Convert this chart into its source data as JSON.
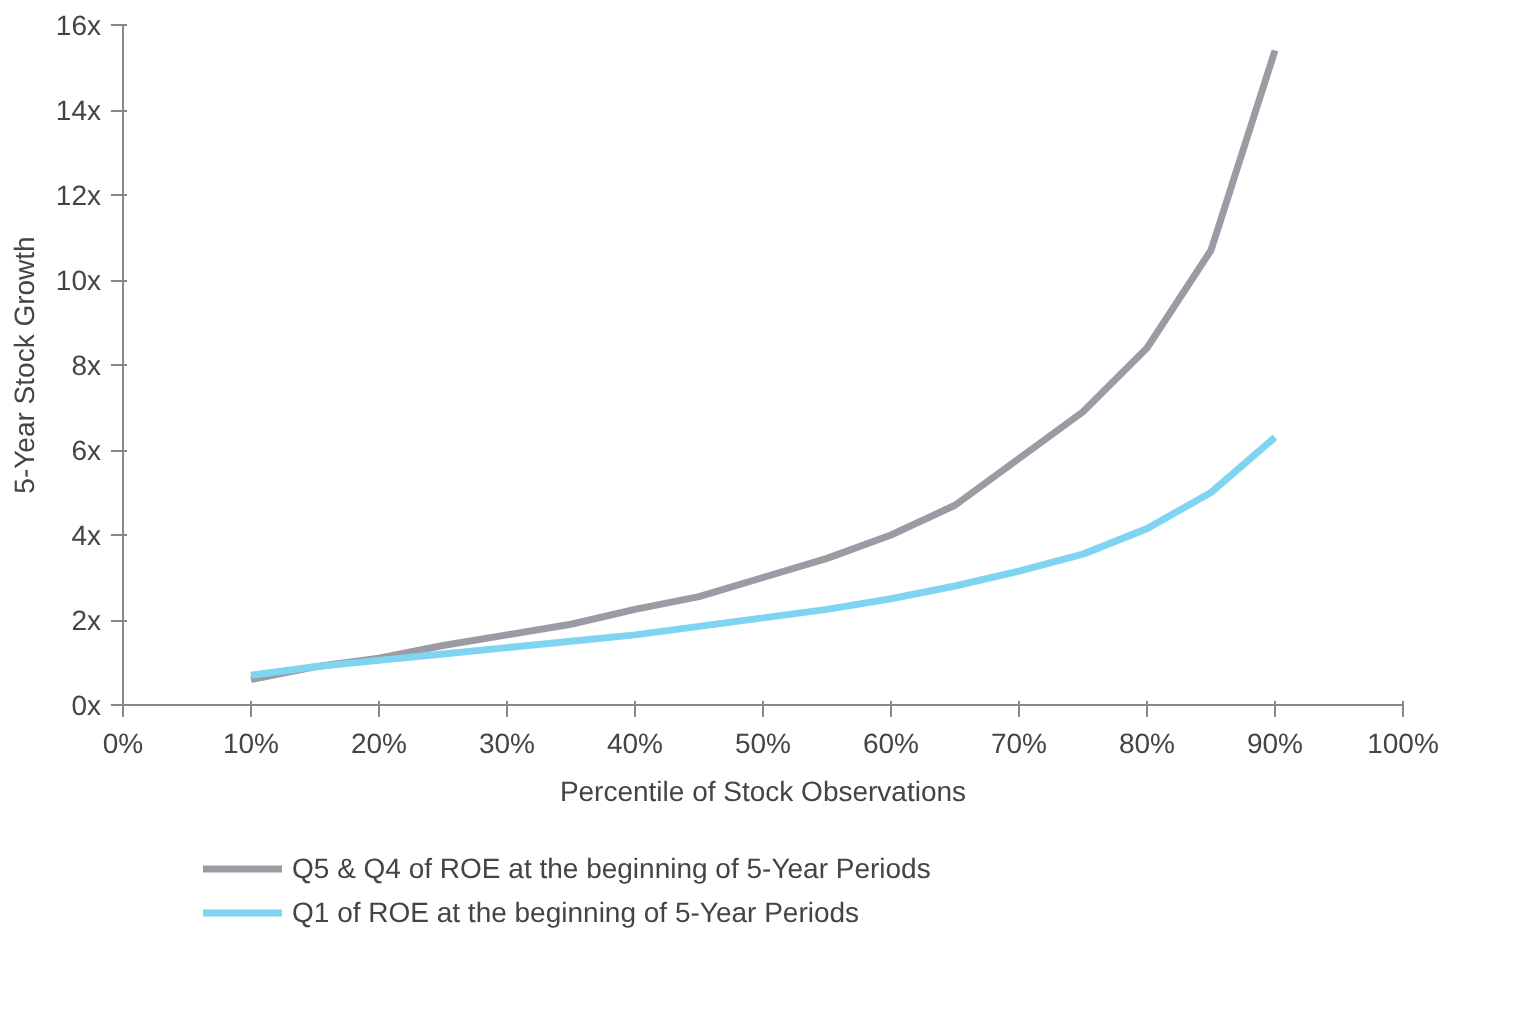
{
  "chart_data": {
    "type": "line",
    "xlabel": "Percentile of Stock Observations",
    "ylabel": "5-Year Stock Growth",
    "x": [
      10,
      15,
      20,
      25,
      30,
      35,
      40,
      45,
      50,
      55,
      60,
      65,
      70,
      75,
      80,
      85,
      90
    ],
    "series": [
      {
        "name": "Q5 & Q4 of ROE at the beginning of 5-Year Periods",
        "color": "#9b9ba3",
        "values": [
          0.6,
          0.9,
          1.1,
          1.4,
          1.65,
          1.9,
          2.25,
          2.55,
          3.0,
          3.45,
          4.0,
          4.7,
          5.8,
          6.9,
          8.4,
          10.7,
          15.4
        ]
      },
      {
        "name": "Q1 of ROE at the beginning of 5-Year Periods",
        "color": "#7fd4f2",
        "values": [
          0.7,
          0.9,
          1.05,
          1.2,
          1.35,
          1.5,
          1.65,
          1.85,
          2.05,
          2.25,
          2.5,
          2.8,
          3.15,
          3.55,
          4.15,
          5.0,
          6.3
        ]
      }
    ],
    "xlim": [
      0,
      100
    ],
    "xticks": [
      {
        "value": 0,
        "label": "0%"
      },
      {
        "value": 10,
        "label": "10%"
      },
      {
        "value": 20,
        "label": "20%"
      },
      {
        "value": 30,
        "label": "30%"
      },
      {
        "value": 40,
        "label": "40%"
      },
      {
        "value": 50,
        "label": "50%"
      },
      {
        "value": 60,
        "label": "60%"
      },
      {
        "value": 70,
        "label": "70%"
      },
      {
        "value": 80,
        "label": "80%"
      },
      {
        "value": 90,
        "label": "90%"
      },
      {
        "value": 100,
        "label": "100%"
      }
    ],
    "ylim": [
      0,
      16
    ],
    "yticks": [
      {
        "value": 0,
        "label": "0x"
      },
      {
        "value": 2,
        "label": "2x"
      },
      {
        "value": 4,
        "label": "4x"
      },
      {
        "value": 6,
        "label": "6x"
      },
      {
        "value": 8,
        "label": "8x"
      },
      {
        "value": 10,
        "label": "10x"
      },
      {
        "value": 12,
        "label": "12x"
      },
      {
        "value": 14,
        "label": "14x"
      },
      {
        "value": 16,
        "label": "16x"
      }
    ],
    "grid": false,
    "legend": "bottom",
    "marker": "none",
    "line_style": "solid"
  }
}
